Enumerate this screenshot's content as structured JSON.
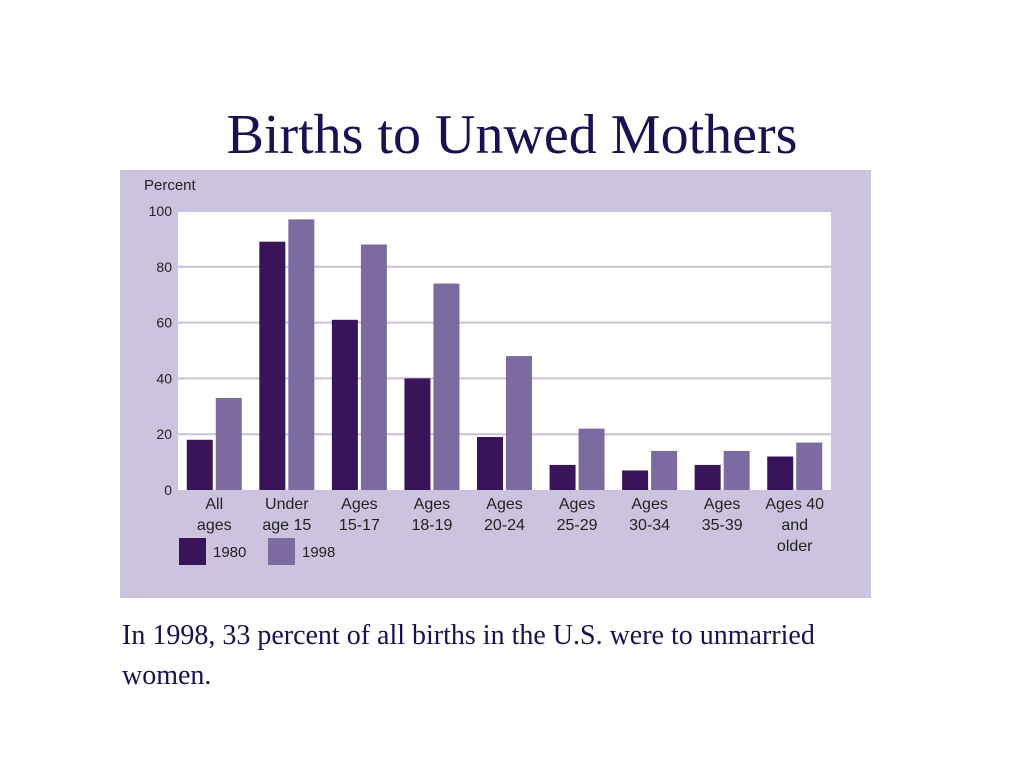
{
  "slide": {
    "title": "Births to Unwed Mothers",
    "caption": "In 1998, 33 percent of all births in the U.S. were to unmarried women."
  },
  "chart_data": {
    "type": "bar",
    "ylabel": "Percent",
    "ylim": [
      0,
      100
    ],
    "yticks": [
      0,
      20,
      40,
      60,
      80,
      100
    ],
    "grid": true,
    "legend_placement": "bottom-left",
    "categories": [
      [
        "All",
        "ages"
      ],
      [
        "Under",
        "age 15"
      ],
      [
        "Ages",
        "15-17"
      ],
      [
        "Ages",
        "18-19"
      ],
      [
        "Ages",
        "20-24"
      ],
      [
        "Ages",
        "25-29"
      ],
      [
        "Ages",
        "30-34"
      ],
      [
        "Ages",
        "35-39"
      ],
      [
        "Ages 40",
        "and",
        "older"
      ]
    ],
    "series": [
      {
        "name": "1980",
        "color": "#3a1458",
        "values": [
          18,
          89,
          61,
          40,
          19,
          9,
          7,
          9,
          12
        ]
      },
      {
        "name": "1998",
        "color": "#7c6ba0",
        "values": [
          33,
          97,
          88,
          74,
          48,
          22,
          14,
          14,
          17
        ]
      }
    ]
  }
}
